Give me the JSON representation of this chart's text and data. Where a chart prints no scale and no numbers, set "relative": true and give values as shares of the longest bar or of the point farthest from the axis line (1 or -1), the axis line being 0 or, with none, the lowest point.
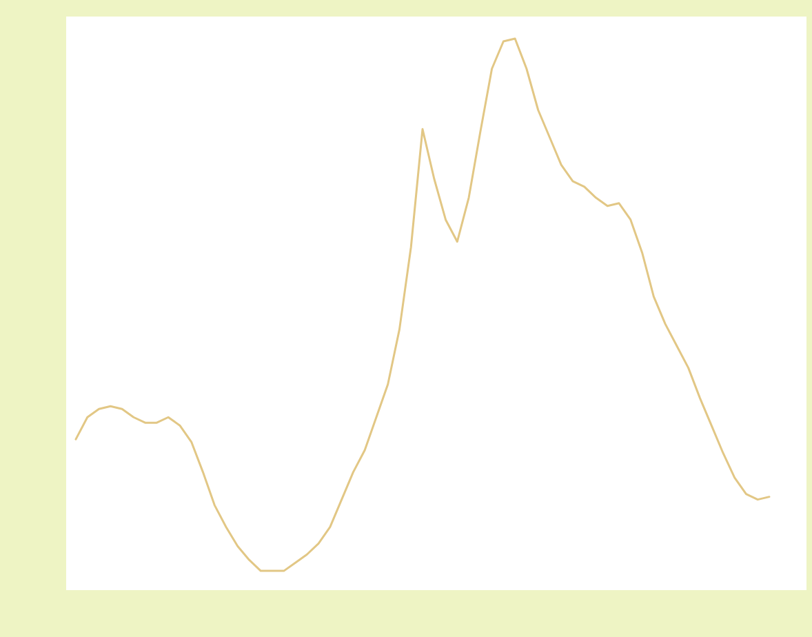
{
  "chart_data": {
    "type": "line",
    "relative": true,
    "categories": [
      null,
      null,
      null,
      null,
      null,
      null,
      null,
      null,
      null,
      null,
      null,
      null,
      null,
      null,
      null,
      null,
      null,
      null,
      null,
      null,
      null,
      null,
      null,
      null,
      null,
      null,
      null,
      null,
      null,
      null,
      null,
      null,
      null,
      null,
      null,
      null,
      null,
      null,
      null,
      null,
      null,
      null,
      null,
      null,
      null,
      null,
      null,
      null,
      null,
      null,
      null,
      null,
      null,
      null,
      null,
      null,
      null,
      null,
      null,
      null,
      null
    ],
    "series": [
      {
        "color": "#e2c785",
        "values": [
          0.27,
          0.31,
          0.325,
          0.33,
          0.325,
          0.31,
          0.3,
          0.3,
          0.31,
          0.295,
          0.265,
          0.21,
          0.15,
          0.11,
          0.075,
          0.05,
          0.03,
          0.03,
          0.03,
          0.045,
          0.06,
          0.08,
          0.11,
          0.16,
          0.21,
          0.25,
          0.31,
          0.37,
          0.47,
          0.62,
          0.835,
          0.745,
          0.67,
          0.63,
          0.71,
          0.83,
          0.945,
          0.995,
          1,
          0.945,
          0.87,
          0.82,
          0.77,
          0.74,
          0.73,
          0.71,
          0.695,
          0.7,
          0.67,
          0.61,
          0.53,
          0.48,
          0.44,
          0.4,
          0.345,
          0.295,
          0.245,
          0.2,
          0.17,
          0.16,
          0.165
        ]
      }
    ]
  }
}
